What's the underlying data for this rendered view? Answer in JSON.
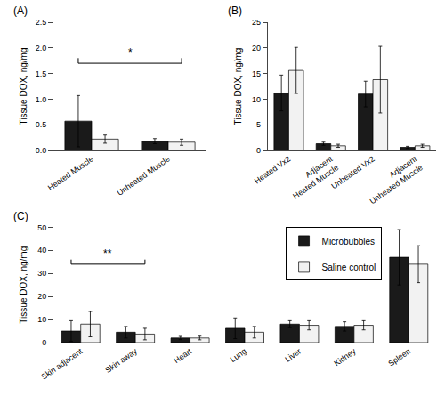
{
  "chart_data": [
    {
      "type": "bar",
      "title": "(A)",
      "categories": [
        "Heated Muscle",
        "Unheated Muscle"
      ],
      "series": [
        {
          "name": "Microbubbles",
          "color": "#1a1a1a",
          "values": [
            0.57,
            0.18
          ],
          "errors": [
            0.5,
            0.05
          ]
        },
        {
          "name": "Saline control",
          "color": "#f2f2f2",
          "values": [
            0.22,
            0.16
          ],
          "errors": [
            0.08,
            0.06
          ]
        }
      ],
      "ylabel": "Tissue DOX, ng/mg",
      "ylim": [
        0,
        2.5
      ],
      "yticks": [
        {
          "value": 0,
          "label": "0.0"
        },
        0.5,
        {
          "value": 1,
          "label": "1.0"
        },
        1.5,
        {
          "value": 2,
          "label": "2.0"
        },
        2.5
      ],
      "annotations": [
        {
          "text": "*",
          "x": [
            "Heated Muscle",
            "Unheated Muscle"
          ]
        }
      ],
      "grid": false
    },
    {
      "type": "bar",
      "title": "(B)",
      "categories": [
        "Heated Vx2",
        "Adjacent\nHeated Muscle",
        "Unheated Vx2",
        "Adjacent\nUnheated Muscle"
      ],
      "series": [
        {
          "name": "Microbubbles",
          "color": "#1a1a1a",
          "values": [
            11.2,
            1.3,
            11.0,
            0.6
          ],
          "errors": [
            3.5,
            0.3,
            2.5,
            0.2
          ]
        },
        {
          "name": "Saline control",
          "color": "#f2f2f2",
          "values": [
            15.6,
            0.9,
            13.8,
            0.9
          ],
          "errors": [
            4.5,
            0.3,
            6.5,
            0.3
          ]
        }
      ],
      "ylabel": "Tissue DOX, ng/mg",
      "ylim": [
        0,
        25
      ],
      "yticks": [
        0,
        5,
        10,
        15,
        20,
        25
      ],
      "grid": false
    },
    {
      "type": "bar",
      "title": "(C)",
      "categories": [
        "Skin adjacent",
        "Skin away",
        "Heart",
        "Lung",
        "Liver",
        "Kidney",
        "Spleen"
      ],
      "series": [
        {
          "name": "Microbubbles",
          "color": "#1a1a1a",
          "values": [
            5.0,
            4.5,
            2.0,
            6.2,
            8.0,
            7.0,
            37.0
          ],
          "errors": [
            4.5,
            2.5,
            0.7,
            4.5,
            1.5,
            2.0,
            12.0
          ]
        },
        {
          "name": "Saline control",
          "color": "#f2f2f2",
          "values": [
            8.0,
            3.7,
            2.0,
            4.5,
            7.5,
            7.5,
            34.0
          ],
          "errors": [
            5.5,
            2.5,
            0.8,
            2.5,
            2.0,
            2.0,
            8.0
          ]
        }
      ],
      "ylabel": "Tissue DOX, ng/mg",
      "ylim": [
        0,
        50
      ],
      "yticks": [
        0,
        10,
        20,
        30,
        40,
        50
      ],
      "annotations": [
        {
          "text": "**",
          "x": [
            "Skin adjacent",
            "Skin away"
          ]
        }
      ],
      "legend": "upper right",
      "grid": false
    }
  ]
}
